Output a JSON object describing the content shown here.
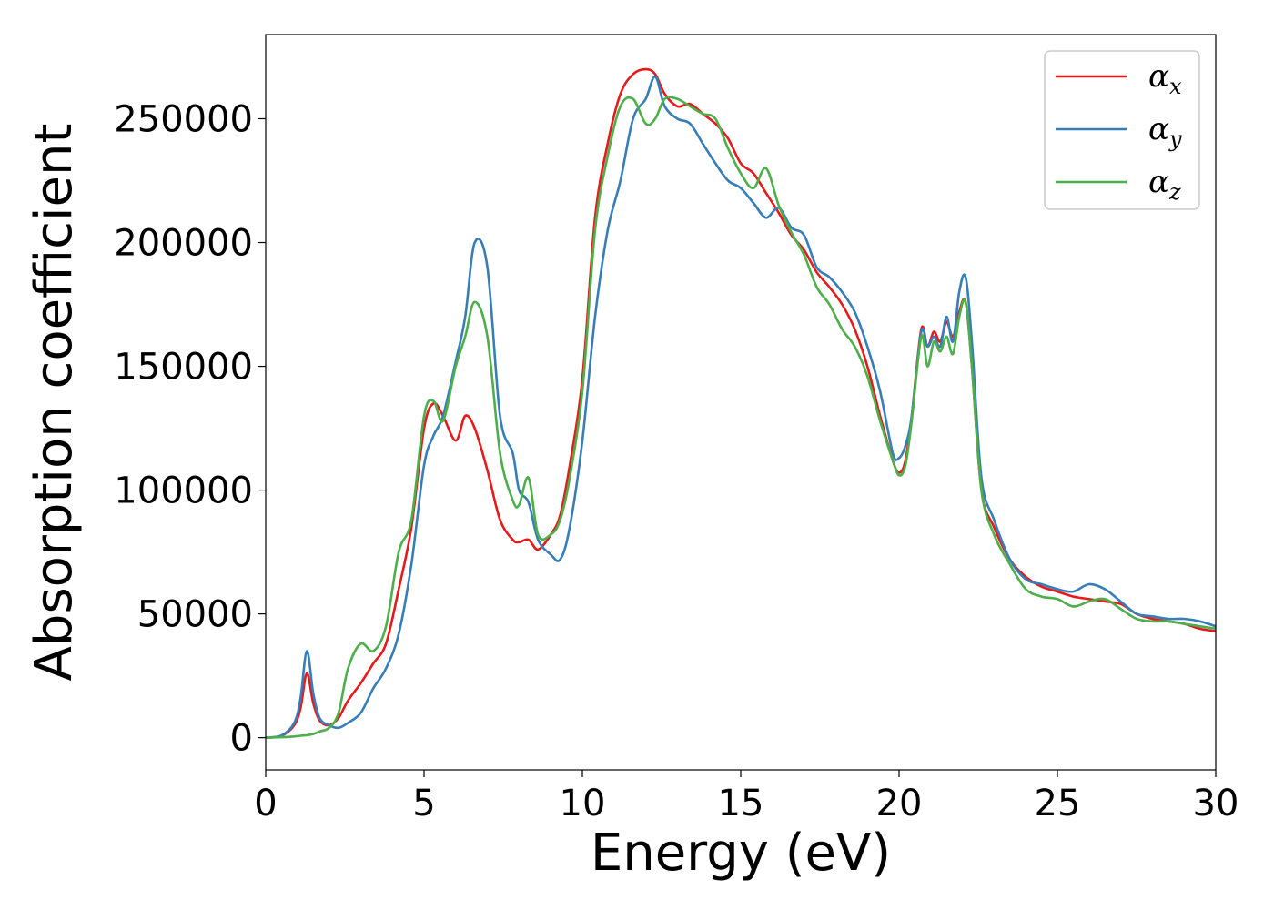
{
  "chart_data": {
    "type": "line",
    "title": "",
    "xlabel": "Energy (eV)",
    "ylabel": "Absorption coefficient",
    "xlim": [
      0,
      30
    ],
    "ylim": [
      -13000,
      284000
    ],
    "xticks": [
      0,
      5,
      10,
      15,
      20,
      25,
      30
    ],
    "yticks": [
      0,
      50000,
      100000,
      150000,
      200000,
      250000
    ],
    "grid": false,
    "legend_position": "top-right",
    "series": [
      {
        "name": "x",
        "symbol": "α",
        "color": "#e41a1c",
        "x": [
          0,
          0.5,
          0.9,
          1.1,
          1.3,
          1.5,
          1.7,
          2.0,
          2.3,
          2.6,
          3.0,
          3.4,
          3.8,
          4.2,
          4.6,
          5.0,
          5.3,
          5.6,
          6.0,
          6.3,
          6.6,
          7.0,
          7.4,
          7.8,
          8.0,
          8.3,
          8.6,
          9.0,
          9.3,
          9.6,
          10.0,
          10.4,
          10.8,
          11.2,
          11.6,
          12.0,
          12.3,
          12.6,
          13.0,
          13.4,
          13.8,
          14.2,
          14.6,
          15.0,
          15.4,
          15.8,
          16.2,
          16.6,
          17.0,
          17.4,
          17.8,
          18.2,
          18.6,
          19.0,
          19.4,
          19.8,
          20.0,
          20.2,
          20.4,
          20.7,
          20.9,
          21.1,
          21.3,
          21.5,
          21.7,
          21.9,
          22.1,
          22.3,
          22.6,
          23.0,
          23.5,
          24.0,
          24.5,
          25.0,
          25.5,
          26.0,
          26.5,
          27.0,
          27.5,
          28.0,
          28.5,
          29.0,
          29.5,
          30.0
        ],
        "y": [
          0,
          800,
          5000,
          12000,
          26000,
          14000,
          7000,
          5000,
          8000,
          15000,
          22000,
          30000,
          38000,
          60000,
          85000,
          125000,
          135000,
          130000,
          120000,
          130000,
          125000,
          108000,
          88000,
          80000,
          79000,
          80000,
          76000,
          82000,
          90000,
          110000,
          145000,
          210000,
          240000,
          260000,
          268000,
          270000,
          268000,
          260000,
          255000,
          256000,
          252000,
          248000,
          242000,
          232000,
          228000,
          220000,
          212000,
          203000,
          197000,
          188000,
          182000,
          175000,
          165000,
          150000,
          130000,
          112000,
          107000,
          112000,
          130000,
          165000,
          158000,
          164000,
          160000,
          168000,
          162000,
          172000,
          176000,
          150000,
          100000,
          85000,
          72000,
          65000,
          61000,
          59000,
          57000,
          56000,
          55000,
          54000,
          50000,
          48000,
          47000,
          46000,
          44000,
          43000
        ]
      },
      {
        "name": "y",
        "symbol": "α",
        "color": "#377eb8",
        "x": [
          0,
          0.5,
          0.9,
          1.1,
          1.3,
          1.5,
          1.7,
          2.0,
          2.3,
          2.6,
          3.0,
          3.4,
          3.8,
          4.2,
          4.6,
          5.0,
          5.3,
          5.6,
          6.0,
          6.3,
          6.6,
          7.0,
          7.4,
          7.8,
          8.0,
          8.3,
          8.6,
          9.0,
          9.3,
          9.6,
          10.0,
          10.4,
          10.8,
          11.2,
          11.6,
          12.0,
          12.3,
          12.6,
          13.0,
          13.4,
          13.8,
          14.2,
          14.6,
          15.0,
          15.4,
          15.8,
          16.2,
          16.6,
          17.0,
          17.4,
          17.8,
          18.2,
          18.6,
          19.0,
          19.4,
          19.8,
          20.0,
          20.2,
          20.4,
          20.7,
          20.9,
          21.1,
          21.3,
          21.5,
          21.7,
          21.9,
          22.1,
          22.3,
          22.6,
          23.0,
          23.5,
          24.0,
          24.5,
          25.0,
          25.5,
          26.0,
          26.5,
          27.0,
          27.5,
          28.0,
          28.5,
          29.0,
          29.5,
          30.0
        ],
        "y": [
          0,
          900,
          6000,
          16000,
          35000,
          18000,
          8000,
          5000,
          4000,
          6000,
          10000,
          20000,
          28000,
          42000,
          70000,
          110000,
          122000,
          130000,
          152000,
          170000,
          200000,
          190000,
          130000,
          115000,
          100000,
          95000,
          80000,
          74000,
          72000,
          85000,
          120000,
          170000,
          205000,
          225000,
          250000,
          258000,
          267000,
          255000,
          250000,
          248000,
          240000,
          232000,
          225000,
          222000,
          216000,
          210000,
          214000,
          206000,
          203000,
          190000,
          186000,
          180000,
          172000,
          158000,
          140000,
          115000,
          113000,
          118000,
          130000,
          164000,
          158000,
          162000,
          158000,
          170000,
          160000,
          180000,
          186000,
          160000,
          105000,
          88000,
          72000,
          64000,
          62000,
          60000,
          59000,
          62000,
          60000,
          55000,
          50000,
          49000,
          48000,
          48000,
          47000,
          45000
        ]
      },
      {
        "name": "z",
        "symbol": "α",
        "color": "#4daf4a",
        "x": [
          0,
          0.5,
          0.9,
          1.1,
          1.3,
          1.5,
          1.7,
          2.0,
          2.3,
          2.6,
          3.0,
          3.4,
          3.8,
          4.2,
          4.6,
          5.0,
          5.3,
          5.6,
          6.0,
          6.3,
          6.6,
          7.0,
          7.4,
          7.8,
          8.0,
          8.3,
          8.6,
          9.0,
          9.3,
          9.6,
          10.0,
          10.4,
          10.8,
          11.2,
          11.6,
          12.0,
          12.3,
          12.6,
          13.0,
          13.4,
          13.8,
          14.2,
          14.6,
          15.0,
          15.4,
          15.8,
          16.2,
          16.6,
          17.0,
          17.4,
          17.8,
          18.2,
          18.6,
          19.0,
          19.4,
          19.8,
          20.0,
          20.2,
          20.4,
          20.7,
          20.9,
          21.1,
          21.3,
          21.5,
          21.7,
          21.9,
          22.1,
          22.3,
          22.6,
          23.0,
          23.5,
          24.0,
          24.5,
          25.0,
          25.5,
          26.0,
          26.5,
          27.0,
          27.5,
          28.0,
          28.5,
          29.0,
          29.5,
          30.0
        ],
        "y": [
          0,
          200,
          500,
          800,
          1000,
          1500,
          2500,
          4000,
          10000,
          28000,
          38000,
          35000,
          45000,
          75000,
          88000,
          130000,
          136000,
          128000,
          150000,
          162000,
          176000,
          162000,
          115000,
          96000,
          94000,
          105000,
          82000,
          82000,
          88000,
          105000,
          140000,
          205000,
          235000,
          255000,
          258000,
          248000,
          250000,
          258000,
          258000,
          255000,
          252000,
          250000,
          238000,
          228000,
          222000,
          230000,
          215000,
          204000,
          195000,
          182000,
          175000,
          165000,
          158000,
          146000,
          128000,
          112000,
          106000,
          110000,
          128000,
          162000,
          150000,
          160000,
          156000,
          162000,
          155000,
          170000,
          176000,
          150000,
          100000,
          82000,
          70000,
          60000,
          57000,
          56000,
          53000,
          55000,
          56000,
          52000,
          48000,
          47000,
          47000,
          46000,
          45000,
          44000
        ]
      }
    ]
  }
}
